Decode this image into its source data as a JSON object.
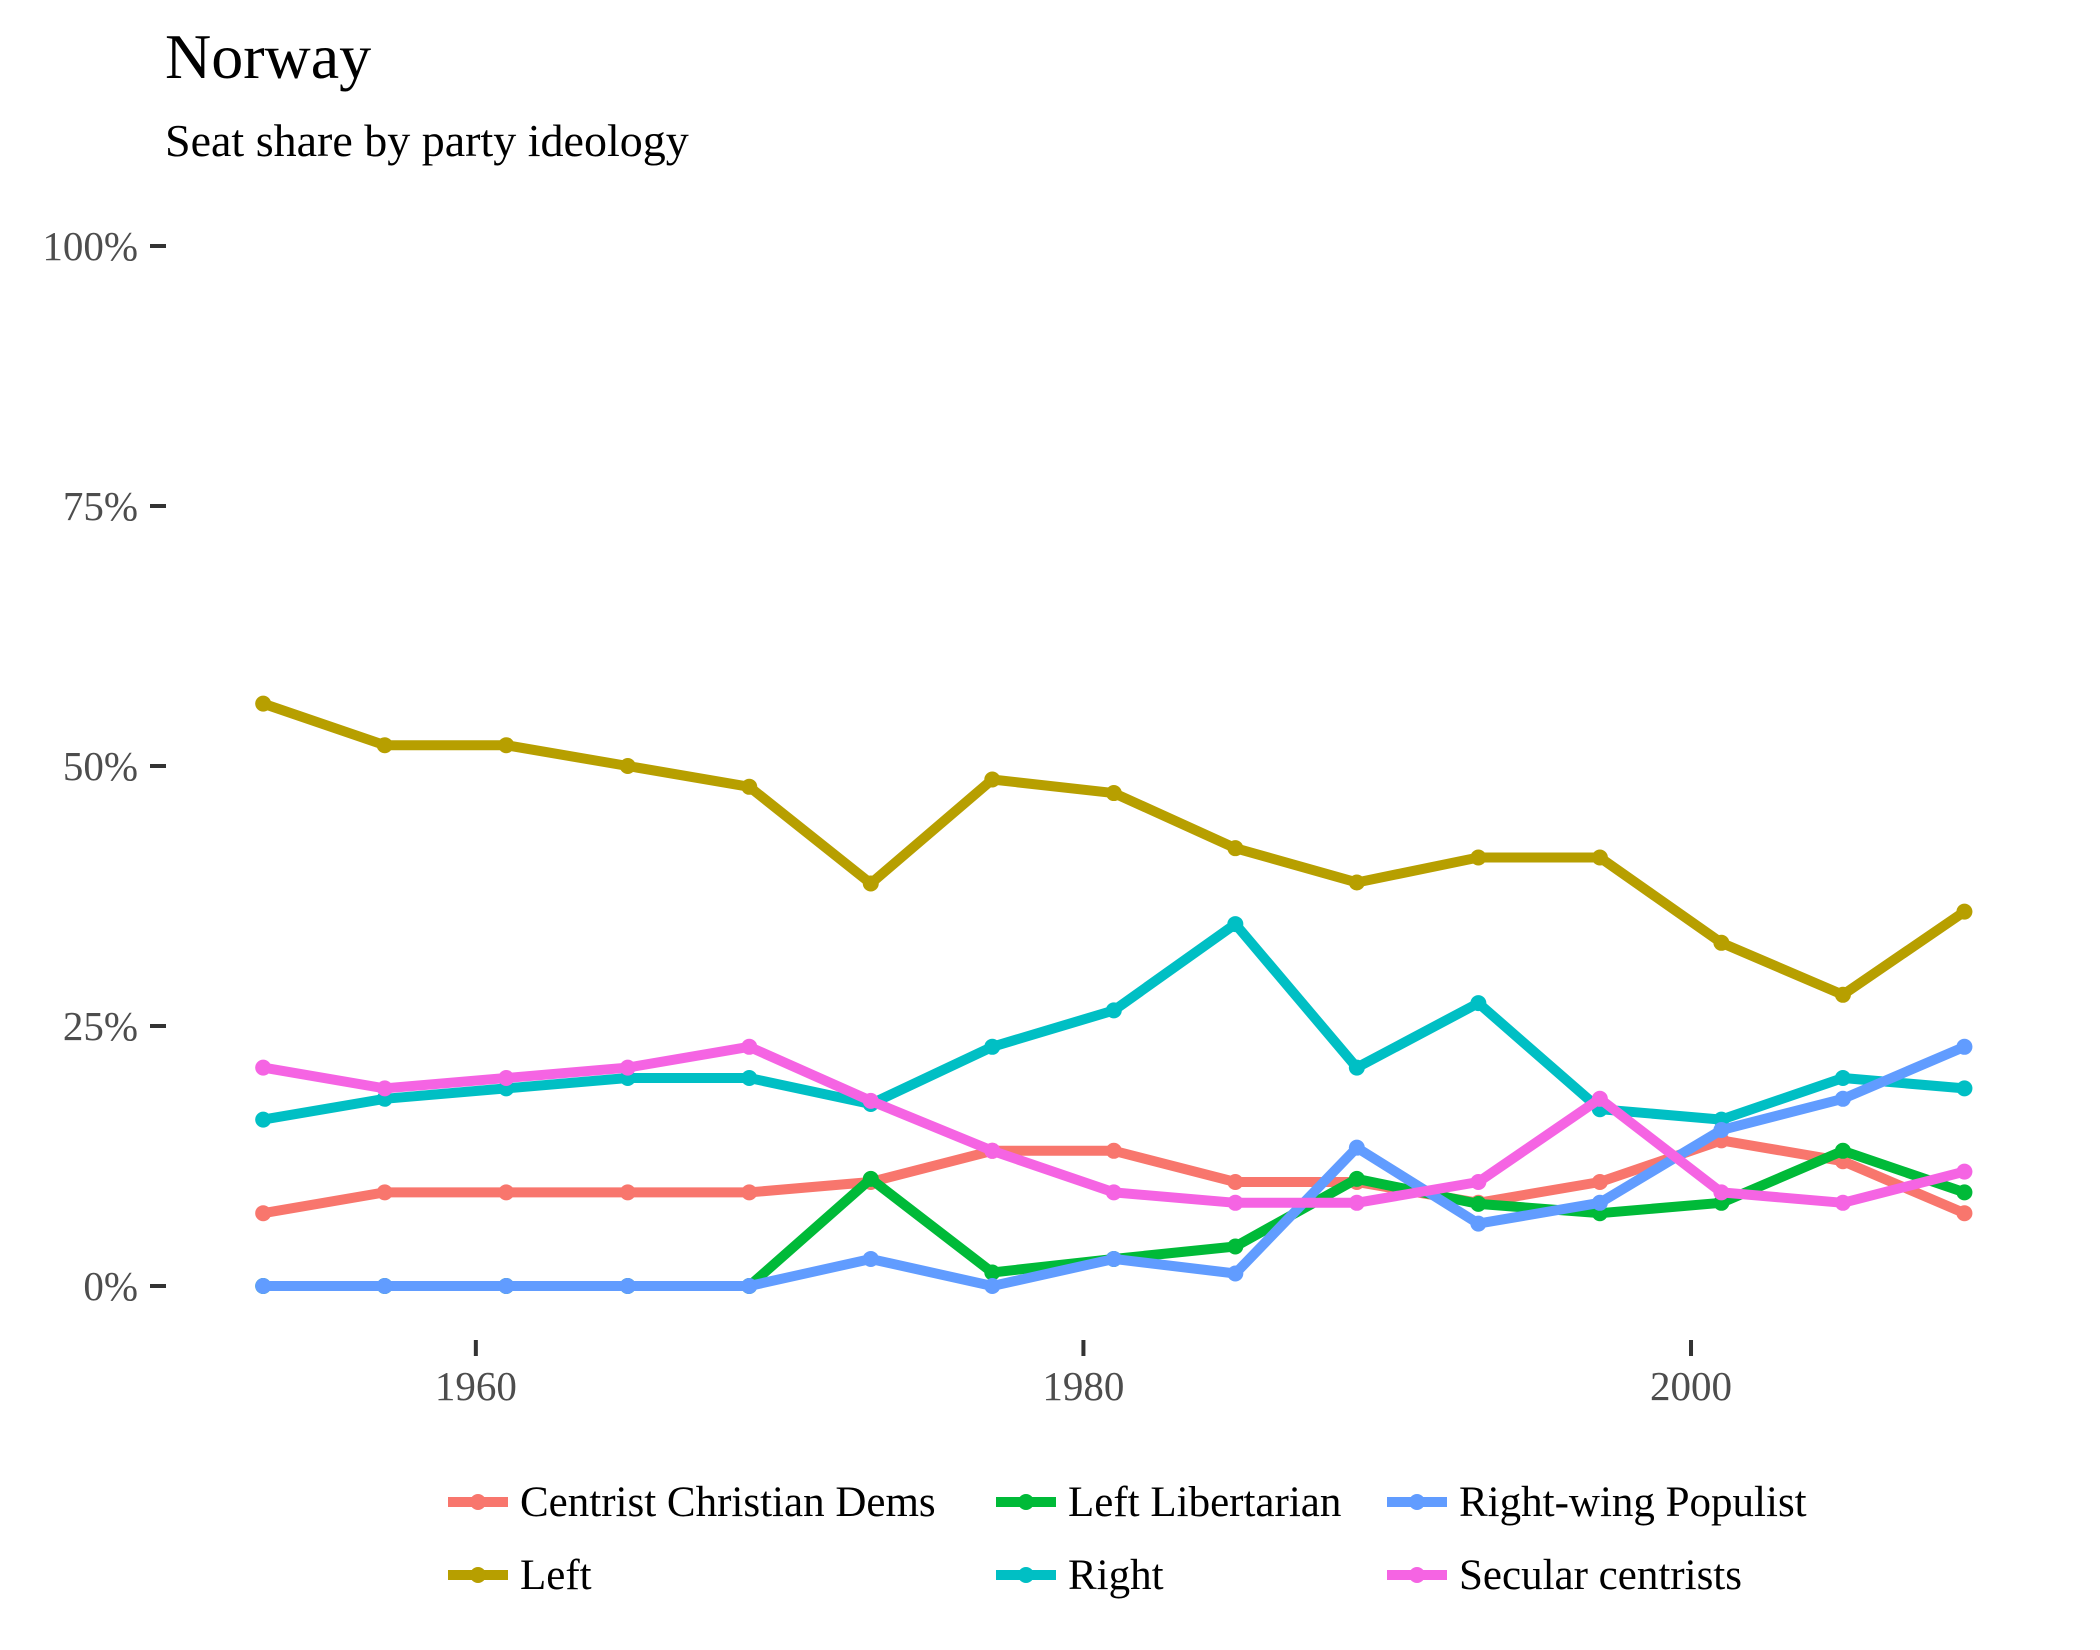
{
  "chart_data": {
    "type": "line",
    "title": "Norway",
    "subtitle": "Seat share by party ideology",
    "xlabel": "",
    "ylabel": "",
    "xlim": [
      1952.5,
      2010.5
    ],
    "ylim": [
      0,
      100
    ],
    "x_ticks": [
      1960,
      1980,
      2000
    ],
    "y_ticks": [
      {
        "value": 0,
        "label": "0%"
      },
      {
        "value": 25,
        "label": "25%"
      },
      {
        "value": 50,
        "label": "50%"
      },
      {
        "value": 75,
        "label": "75%"
      },
      {
        "value": 100,
        "label": "100%"
      }
    ],
    "grid": false,
    "legend_position": "bottom",
    "x": [
      1953,
      1957,
      1961,
      1965,
      1969,
      1973,
      1977,
      1981,
      1985,
      1989,
      1993,
      1997,
      2001,
      2005,
      2009
    ],
    "series": [
      {
        "name": "Centrist Christian Dems",
        "color": "#F8766D",
        "values": [
          7,
          9,
          9,
          9,
          9,
          10,
          13,
          13,
          10,
          10,
          8,
          10,
          14,
          12,
          7
        ]
      },
      {
        "name": "Left",
        "color": "#B79F00",
        "values": [
          56,
          52,
          52,
          50,
          48,
          38.7,
          48.7,
          47.4,
          42.1,
          38.8,
          41.2,
          41.2,
          33,
          28,
          36
        ]
      },
      {
        "name": "Left Libertarian",
        "color": "#00BA38",
        "values": [
          0,
          0,
          0,
          0,
          0,
          10.3,
          1.3,
          2.6,
          3.8,
          10.3,
          7.9,
          7,
          8,
          13,
          9
        ]
      },
      {
        "name": "Right",
        "color": "#00BFC4",
        "values": [
          16,
          18,
          19,
          20,
          20,
          17.5,
          23,
          26.5,
          34.8,
          21,
          27.2,
          17,
          16,
          20,
          19
        ]
      },
      {
        "name": "Right-wing Populist",
        "color": "#619CFF",
        "values": [
          0,
          0,
          0,
          0,
          0,
          2.6,
          0,
          2.6,
          1.2,
          13.3,
          6,
          8,
          15,
          18,
          23
        ]
      },
      {
        "name": "Secular centrists",
        "color": "#F564E3",
        "values": [
          21,
          19,
          20,
          21,
          23,
          17.8,
          13,
          9,
          8,
          8,
          10,
          18,
          9,
          8,
          11
        ]
      }
    ],
    "legend_order": [
      "Centrist Christian Dems",
      "Left Libertarian",
      "Right-wing Populist",
      "Left",
      "Right",
      "Secular centrists"
    ]
  }
}
